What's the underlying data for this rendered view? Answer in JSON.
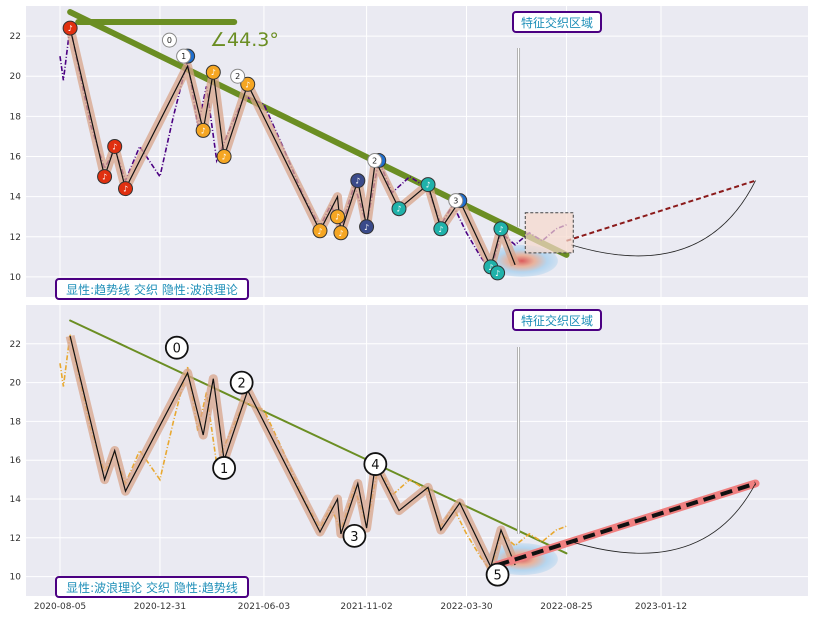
{
  "chart_data": [
    {
      "type": "line",
      "panel": "top",
      "ylim": [
        9,
        23.5
      ],
      "y_ticks": [
        10,
        12,
        14,
        16,
        18,
        20,
        22
      ],
      "x_ticks": [
        "2020-08-05",
        "2020-12-31",
        "2021-06-03",
        "2021-11-02",
        "2022-03-30",
        "2022-08-25",
        "2023-01-12"
      ],
      "box_label": "显性:趋势线 交织 隐性:波浪理论",
      "feature_label": "特征交织区域",
      "angle_label": "∠44.3°",
      "colors": {
        "price": "#4b0082",
        "trend": "#6b8e23",
        "wave_fill": "#d8a48a",
        "wave_fill_up": "#b8c8b8"
      },
      "price_series": [
        {
          "x": "2020-08-05",
          "y": 21.0
        },
        {
          "x": "2020-08-10",
          "y": 19.8
        },
        {
          "x": "2020-08-20",
          "y": 22.5
        },
        {
          "x": "2020-09-01",
          "y": 20.5
        },
        {
          "x": "2020-09-20",
          "y": 17.5
        },
        {
          "x": "2020-10-10",
          "y": 15.4
        },
        {
          "x": "2020-10-25",
          "y": 16.4
        },
        {
          "x": "2020-11-10",
          "y": 14.8
        },
        {
          "x": "2020-12-01",
          "y": 16.5
        },
        {
          "x": "2020-12-31",
          "y": 15.0
        },
        {
          "x": "2021-01-20",
          "y": 18.0
        },
        {
          "x": "2021-02-10",
          "y": 20.8
        },
        {
          "x": "2021-02-25",
          "y": 17.5
        },
        {
          "x": "2021-03-10",
          "y": 19.5
        },
        {
          "x": "2021-03-25",
          "y": 15.8
        },
        {
          "x": "2021-04-15",
          "y": 17.5
        },
        {
          "x": "2021-05-05",
          "y": 19.0
        },
        {
          "x": "2021-06-03",
          "y": 18.6
        },
        {
          "x": "2021-07-01",
          "y": 16.5
        },
        {
          "x": "2021-08-01",
          "y": 14.0
        },
        {
          "x": "2021-08-25",
          "y": 12.5
        },
        {
          "x": "2021-09-10",
          "y": 13.6
        },
        {
          "x": "2021-09-25",
          "y": 12.4
        },
        {
          "x": "2021-10-15",
          "y": 14.6
        },
        {
          "x": "2021-11-02",
          "y": 12.6
        },
        {
          "x": "2021-11-20",
          "y": 15.8
        },
        {
          "x": "2021-12-10",
          "y": 14.2
        },
        {
          "x": "2022-01-05",
          "y": 15.0
        },
        {
          "x": "2022-02-01",
          "y": 14.4
        },
        {
          "x": "2022-02-20",
          "y": 12.6
        },
        {
          "x": "2022-03-10",
          "y": 13.6
        },
        {
          "x": "2022-03-30",
          "y": 12.2
        },
        {
          "x": "2022-04-20",
          "y": 11.0
        },
        {
          "x": "2022-05-05",
          "y": 10.3
        },
        {
          "x": "2022-05-20",
          "y": 12.2
        },
        {
          "x": "2022-06-10",
          "y": 11.6
        },
        {
          "x": "2022-07-01",
          "y": 12.2
        },
        {
          "x": "2022-07-20",
          "y": 11.8
        },
        {
          "x": "2022-08-10",
          "y": 12.4
        },
        {
          "x": "2022-08-25",
          "y": 12.6
        }
      ],
      "trend_line": [
        {
          "x": "2020-08-20",
          "y": 23.2
        },
        {
          "x": "2022-08-25",
          "y": 11.1
        }
      ],
      "trend_short": [
        {
          "x": "2020-09-01",
          "y": 22.7
        },
        {
          "x": "2021-04-20",
          "y": 22.7
        }
      ],
      "wave_path": [
        {
          "x": "2020-08-20",
          "y": 22.4
        },
        {
          "x": "2020-10-10",
          "y": 15.0
        },
        {
          "x": "2020-10-25",
          "y": 16.5
        },
        {
          "x": "2020-11-10",
          "y": 14.4
        },
        {
          "x": "2021-02-10",
          "y": 20.5
        },
        {
          "x": "2021-03-05",
          "y": 17.3
        },
        {
          "x": "2021-03-20",
          "y": 20.2
        },
        {
          "x": "2021-04-05",
          "y": 16.0
        },
        {
          "x": "2021-05-10",
          "y": 19.6
        },
        {
          "x": "2021-08-25",
          "y": 12.3
        },
        {
          "x": "2021-09-20",
          "y": 14.0
        },
        {
          "x": "2021-09-25",
          "y": 12.2
        },
        {
          "x": "2021-10-20",
          "y": 14.8
        },
        {
          "x": "2021-11-02",
          "y": 12.5
        },
        {
          "x": "2021-11-15",
          "y": 15.8
        },
        {
          "x": "2021-12-20",
          "y": 13.4
        },
        {
          "x": "2022-02-01",
          "y": 14.6
        },
        {
          "x": "2022-02-20",
          "y": 12.4
        },
        {
          "x": "2022-03-20",
          "y": 13.8
        },
        {
          "x": "2022-05-05",
          "y": 10.5
        },
        {
          "x": "2022-05-20",
          "y": 12.4
        },
        {
          "x": "2022-06-10",
          "y": 10.6
        }
      ],
      "markers": [
        {
          "x": "2020-08-20",
          "y": 22.4,
          "color": "#e03010"
        },
        {
          "x": "2020-10-10",
          "y": 15.0,
          "color": "#e03010"
        },
        {
          "x": "2020-10-25",
          "y": 16.5,
          "color": "#e03010"
        },
        {
          "x": "2020-11-10",
          "y": 14.4,
          "color": "#e03010"
        },
        {
          "x": "2021-02-10",
          "y": 21.0,
          "color": "#1f6fd0"
        },
        {
          "x": "2021-03-05",
          "y": 17.3,
          "color": "#f5a623"
        },
        {
          "x": "2021-03-20",
          "y": 20.2,
          "color": "#f5a623"
        },
        {
          "x": "2021-04-05",
          "y": 16.0,
          "color": "#f5a623"
        },
        {
          "x": "2021-05-10",
          "y": 19.6,
          "color": "#f5a623"
        },
        {
          "x": "2021-08-25",
          "y": 12.3,
          "color": "#f5a623"
        },
        {
          "x": "2021-09-20",
          "y": 13.0,
          "color": "#f5a623"
        },
        {
          "x": "2021-09-25",
          "y": 12.2,
          "color": "#f5a623"
        },
        {
          "x": "2021-10-20",
          "y": 14.8,
          "color": "#3a4a8a"
        },
        {
          "x": "2021-11-02",
          "y": 12.5,
          "color": "#3a4a8a"
        },
        {
          "x": "2021-11-20",
          "y": 15.8,
          "color": "#1f6fd0"
        },
        {
          "x": "2021-12-20",
          "y": 13.4,
          "color": "#20b2aa"
        },
        {
          "x": "2022-02-01",
          "y": 14.6,
          "color": "#20b2aa"
        },
        {
          "x": "2022-02-20",
          "y": 12.4,
          "color": "#20b2aa"
        },
        {
          "x": "2022-03-20",
          "y": 13.8,
          "color": "#1f6fd0"
        },
        {
          "x": "2022-05-05",
          "y": 10.5,
          "color": "#20b2aa"
        },
        {
          "x": "2022-05-20",
          "y": 12.4,
          "color": "#20b2aa"
        },
        {
          "x": "2022-05-15",
          "y": 10.2,
          "color": "#20b2aa"
        }
      ],
      "numbered_points": [
        {
          "label": "0",
          "x": "2021-01-20",
          "y": 21.8
        },
        {
          "label": "1",
          "x": "2021-02-10",
          "y": 21.0
        },
        {
          "label": "2",
          "x": "2021-05-01",
          "y": 20.0
        },
        {
          "label": "2",
          "x": "2021-11-20",
          "y": 15.8
        },
        {
          "label": "3",
          "x": "2022-03-20",
          "y": 13.8
        }
      ],
      "projection": [
        {
          "x": "2022-08-25",
          "y": 11.8
        },
        {
          "x": "2023-06-01",
          "y": 14.8
        }
      ]
    },
    {
      "type": "line",
      "panel": "bottom",
      "ylim": [
        9,
        24
      ],
      "y_ticks": [
        10,
        12,
        14,
        16,
        18,
        20,
        22
      ],
      "x_ticks": [
        "2020-08-05",
        "2020-12-31",
        "2021-06-03",
        "2021-11-02",
        "2022-03-30",
        "2022-08-25",
        "2023-01-12"
      ],
      "box_label": "显性:波浪理论 交织 隐性:趋势线",
      "feature_label": "特征交织区域",
      "colors": {
        "price": "#e8a830",
        "trend": "#6b8e23",
        "wave_fill": "#d8a48a",
        "wave_fill_up": "#b8c8b8"
      },
      "wave_labels": [
        {
          "label": "0",
          "x": "2021-01-25",
          "y": 21.8
        },
        {
          "label": "1",
          "x": "2021-04-05",
          "y": 15.6
        },
        {
          "label": "2",
          "x": "2021-05-01",
          "y": 20.0
        },
        {
          "label": "3",
          "x": "2021-10-15",
          "y": 12.1
        },
        {
          "label": "4",
          "x": "2021-11-15",
          "y": 15.8
        },
        {
          "label": "5",
          "x": "2022-05-15",
          "y": 10.1
        }
      ],
      "trend_line": [
        {
          "x": "2020-08-20",
          "y": 23.2
        },
        {
          "x": "2022-08-25",
          "y": 11.2
        }
      ],
      "projection": [
        {
          "x": "2022-05-15",
          "y": 10.6
        },
        {
          "x": "2023-06-01",
          "y": 14.8
        }
      ]
    }
  ]
}
